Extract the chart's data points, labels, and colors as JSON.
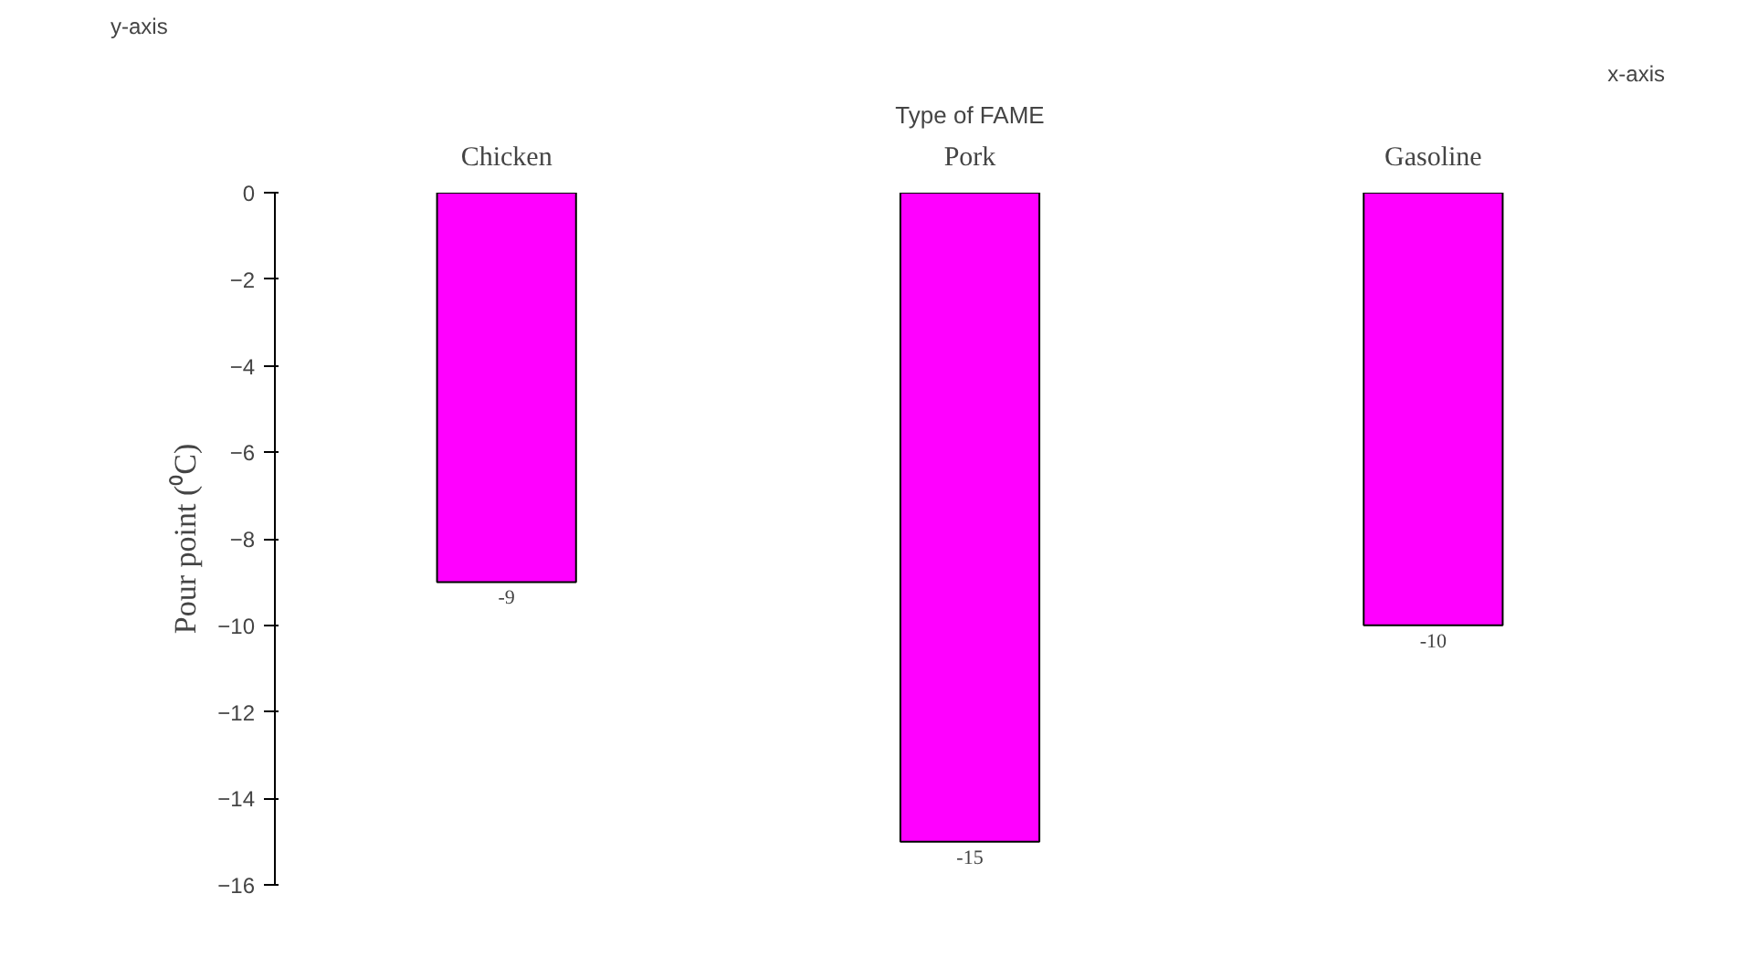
{
  "chart_data": {
    "type": "bar",
    "xlabel": "Type of FAME",
    "ylabel": "Pour point (⁰C)",
    "categories": [
      "Chicken",
      "Pork",
      "Gasoline"
    ],
    "values": [
      -9,
      -15,
      -10
    ],
    "color": "#ff00ff",
    "data_labels": true,
    "ylim": [
      -16,
      0
    ],
    "yticks": [
      0,
      -2,
      -4,
      -6,
      -8,
      -10,
      -12,
      -14,
      -16
    ],
    "grid": false,
    "annotations": [
      "x-axis",
      "y-axis"
    ]
  }
}
